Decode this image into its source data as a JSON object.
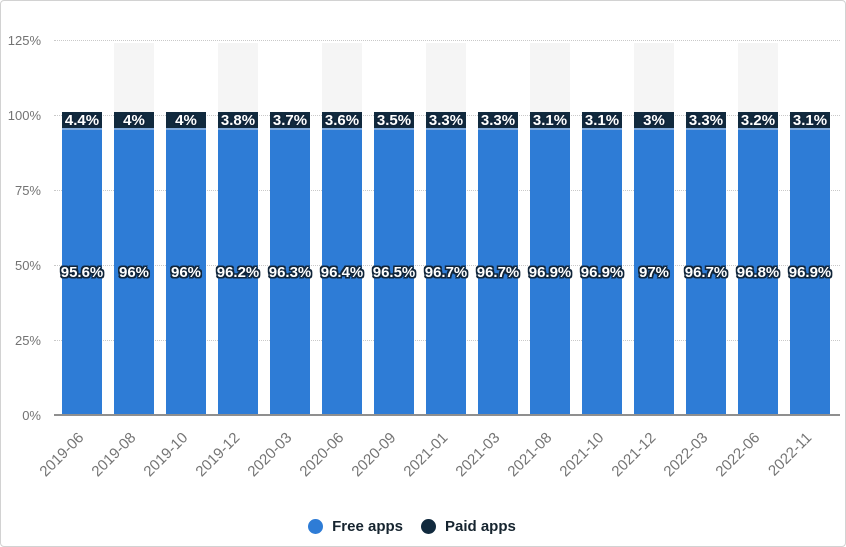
{
  "chart_data": {
    "type": "bar",
    "stacked": true,
    "categories": [
      "2019-06",
      "2019-08",
      "2019-10",
      "2019-12",
      "2020-03",
      "2020-06",
      "2020-09",
      "2021-01",
      "2021-03",
      "2021-08",
      "2021-10",
      "2021-12",
      "2022-03",
      "2022-06",
      "2022-11"
    ],
    "series": [
      {
        "name": "Free apps",
        "color": "#2e7cd6",
        "values": [
          95.6,
          96,
          96,
          96.2,
          96.3,
          96.4,
          96.5,
          96.7,
          96.7,
          96.9,
          96.9,
          97,
          96.7,
          96.8,
          96.9
        ],
        "labels": [
          "95.6%",
          "96%",
          "96%",
          "96.2%",
          "96.3%",
          "96.4%",
          "96.5%",
          "96.7%",
          "96.7%",
          "96.9%",
          "96.9%",
          "97%",
          "96.7%",
          "96.8%",
          "96.9%"
        ]
      },
      {
        "name": "Paid apps",
        "color": "#112a3e",
        "values": [
          4.4,
          4,
          4,
          3.8,
          3.7,
          3.6,
          3.5,
          3.3,
          3.3,
          3.1,
          3.1,
          3,
          3.3,
          3.2,
          3.1
        ],
        "labels": [
          "4.4%",
          "4%",
          "4%",
          "3.8%",
          "3.7%",
          "3.6%",
          "3.5%",
          "3.3%",
          "3.3%",
          "3.1%",
          "3.1%",
          "3%",
          "3.3%",
          "3.2%",
          "3.1%"
        ]
      }
    ],
    "y_ticks": [
      "0%",
      "25%",
      "50%",
      "75%",
      "100%",
      "125%"
    ],
    "ylim": [
      0,
      125
    ],
    "grid": "horizontal-dotted",
    "legend_position": "bottom-center",
    "label_outline_color": "#10253a",
    "seam_color": "#7fa9dc",
    "band_color": "#f5f5f5"
  },
  "legend": {
    "items": [
      {
        "label": "Free apps",
        "color": "#2e7cd6"
      },
      {
        "label": "Paid apps",
        "color": "#112a3e"
      }
    ]
  }
}
